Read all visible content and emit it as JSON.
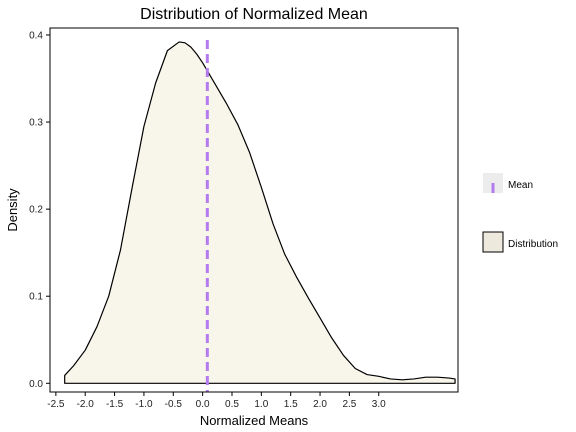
{
  "chart_data": {
    "type": "area",
    "title": "Distribution of Normalized Mean",
    "xlabel": "Normalized Means",
    "ylabel": "Density",
    "xlim": [
      -2.6,
      4.35
    ],
    "ylim": [
      -0.01,
      0.408
    ],
    "x_ticks": [
      "-2.5",
      "-2.0",
      "-1.5",
      "-1.0",
      "-0.5",
      "0.0",
      "0.5",
      "1.0",
      "1.5",
      "2.0",
      "2.5",
      "3.0"
    ],
    "y_ticks": [
      "0.0",
      "0.1",
      "0.2",
      "0.3",
      "0.4"
    ],
    "grid": false,
    "legend_position": "right",
    "series": [
      {
        "name": "Distribution",
        "kind": "density",
        "fill": "#f8f5ea",
        "stroke": "#000000",
        "x": [
          -2.35,
          -2.2,
          -2.0,
          -1.8,
          -1.6,
          -1.4,
          -1.2,
          -1.0,
          -0.8,
          -0.6,
          -0.4,
          -0.3,
          -0.2,
          -0.1,
          0.0,
          0.2,
          0.4,
          0.6,
          0.8,
          1.0,
          1.2,
          1.4,
          1.6,
          1.8,
          2.0,
          2.2,
          2.4,
          2.6,
          2.8,
          3.0,
          3.2,
          3.4,
          3.6,
          3.8,
          4.0,
          4.2,
          4.3
        ],
        "y": [
          0.009,
          0.02,
          0.038,
          0.065,
          0.1,
          0.153,
          0.225,
          0.295,
          0.345,
          0.382,
          0.392,
          0.391,
          0.386,
          0.378,
          0.368,
          0.345,
          0.322,
          0.297,
          0.265,
          0.225,
          0.183,
          0.148,
          0.122,
          0.098,
          0.075,
          0.052,
          0.032,
          0.017,
          0.01,
          0.008,
          0.005,
          0.004,
          0.005,
          0.007,
          0.007,
          0.006,
          0.005
        ]
      },
      {
        "name": "Mean",
        "kind": "vline",
        "x": 0.08,
        "color": "#b57bee"
      }
    ]
  },
  "legend": [
    {
      "name": "Mean",
      "color": "#b57bee"
    },
    {
      "name": "Distribution",
      "color": "#ede9dd"
    }
  ]
}
